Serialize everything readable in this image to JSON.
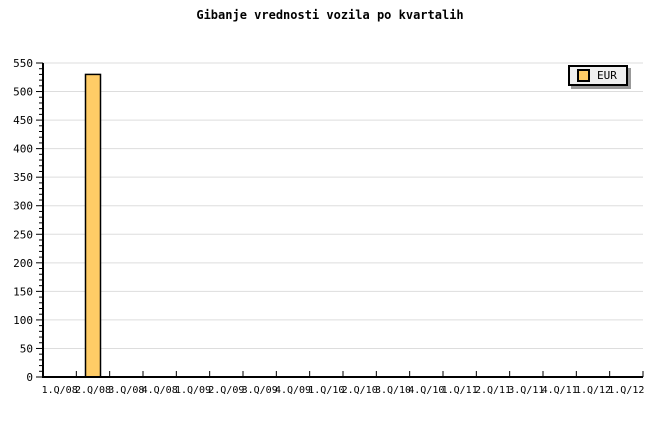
{
  "title": "Gibanje vrednosti vozila po kvartalih",
  "chart_data": {
    "type": "bar",
    "title": "Gibanje vrednosti vozila po kvartalih",
    "categories": [
      "1.Q/08",
      "2.Q/08",
      "3.Q/08",
      "4.Q/08",
      "1.Q/09",
      "2.Q/09",
      "3.Q/09",
      "4.Q/09",
      "1.Q/10",
      "2.Q/10",
      "3.Q/10",
      "4.Q/10",
      "1.Q/11",
      "2.Q/11",
      "3.Q/11",
      "4.Q/11",
      "1.Q/12",
      "1.Q/12"
    ],
    "series": [
      {
        "name": "EUR",
        "values": [
          null,
          530,
          null,
          null,
          null,
          null,
          null,
          null,
          null,
          null,
          null,
          null,
          null,
          null,
          null,
          null,
          null,
          null
        ]
      }
    ],
    "xlabel": "",
    "ylabel": "",
    "ylim": [
      0,
      550
    ],
    "ytick_step": 50,
    "yminor_tick_step": 10,
    "ytick_labels": [
      "0",
      "50",
      "100",
      "150",
      "200",
      "250",
      "300",
      "350",
      "400",
      "450",
      "500",
      "550"
    ],
    "grid": "horizontal",
    "legend_position": "top-right",
    "colors": {
      "bar_fill": "#FFCC66",
      "bar_border": "#000000",
      "grid_line": "#DDDDDD",
      "axis_line": "#000000",
      "text": "#000000",
      "legend_background": "#F0F0F0",
      "legend_shadow": "#999999"
    }
  }
}
